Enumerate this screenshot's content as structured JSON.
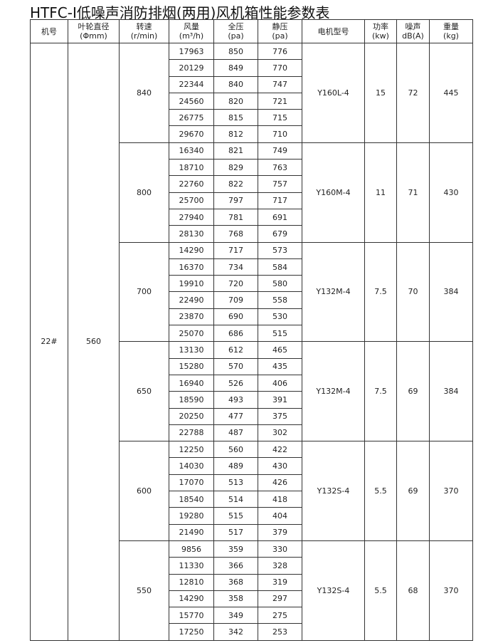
{
  "title": "HTFC-Ⅰ低噪声消防排烟(两用)风机箱性能参数表",
  "headers": [
    {
      "line1": "机号",
      "line2": ""
    },
    {
      "line1": "叶轮直径",
      "line2": "(Φmm)"
    },
    {
      "line1": "转速",
      "line2": "(r/min)"
    },
    {
      "line1": "风量",
      "line2": "(m³/h)"
    },
    {
      "line1": "全压",
      "line2": "(pa)"
    },
    {
      "line1": "静压",
      "line2": "(pa)"
    },
    {
      "line1": "电机型号",
      "line2": ""
    },
    {
      "line1": "功率",
      "line2": "(kw)"
    },
    {
      "line1": "噪声",
      "line2": "dB(A)"
    },
    {
      "line1": "重量",
      "line2": "(kg)"
    }
  ],
  "machine_no": "22#",
  "impeller_diameter": "560",
  "groups": [
    {
      "speed": "840",
      "motor": "Y160L-4",
      "power": "15",
      "noise": "72",
      "weight": "445",
      "rows": [
        [
          "17963",
          "850",
          "776"
        ],
        [
          "20129",
          "849",
          "770"
        ],
        [
          "22344",
          "840",
          "747"
        ],
        [
          "24560",
          "820",
          "721"
        ],
        [
          "26775",
          "815",
          "715"
        ],
        [
          "29670",
          "812",
          "710"
        ]
      ]
    },
    {
      "speed": "800",
      "motor": "Y160M-4",
      "power": "11",
      "noise": "71",
      "weight": "430",
      "rows": [
        [
          "16340",
          "821",
          "749"
        ],
        [
          "18710",
          "829",
          "763"
        ],
        [
          "22760",
          "822",
          "757"
        ],
        [
          "25700",
          "797",
          "717"
        ],
        [
          "27940",
          "781",
          "691"
        ],
        [
          "28130",
          "768",
          "679"
        ]
      ]
    },
    {
      "speed": "700",
      "motor": "Y132M-4",
      "power": "7.5",
      "noise": "70",
      "weight": "384",
      "rows": [
        [
          "14290",
          "717",
          "573"
        ],
        [
          "16370",
          "734",
          "584"
        ],
        [
          "19910",
          "720",
          "580"
        ],
        [
          "22490",
          "709",
          "558"
        ],
        [
          "23870",
          "690",
          "530"
        ],
        [
          "25070",
          "686",
          "515"
        ]
      ]
    },
    {
      "speed": "650",
      "motor": "Y132M-4",
      "power": "7.5",
      "noise": "69",
      "weight": "384",
      "rows": [
        [
          "13130",
          "612",
          "465"
        ],
        [
          "15280",
          "570",
          "435"
        ],
        [
          "16940",
          "526",
          "406"
        ],
        [
          "18590",
          "493",
          "391"
        ],
        [
          "20250",
          "477",
          "375"
        ],
        [
          "22788",
          "487",
          "302"
        ]
      ]
    },
    {
      "speed": "600",
      "motor": "Y132S-4",
      "power": "5.5",
      "noise": "69",
      "weight": "370",
      "rows": [
        [
          "12250",
          "560",
          "422"
        ],
        [
          "14030",
          "489",
          "430"
        ],
        [
          "17070",
          "513",
          "426"
        ],
        [
          "18540",
          "514",
          "418"
        ],
        [
          "19280",
          "515",
          "404"
        ],
        [
          "21490",
          "517",
          "379"
        ]
      ]
    },
    {
      "speed": "550",
      "motor": "Y132S-4",
      "power": "5.5",
      "noise": "68",
      "weight": "370",
      "rows": [
        [
          "9856",
          "359",
          "330"
        ],
        [
          "11330",
          "366",
          "328"
        ],
        [
          "12810",
          "368",
          "319"
        ],
        [
          "14290",
          "358",
          "297"
        ],
        [
          "15770",
          "349",
          "275"
        ],
        [
          "17250",
          "342",
          "253"
        ]
      ]
    }
  ]
}
